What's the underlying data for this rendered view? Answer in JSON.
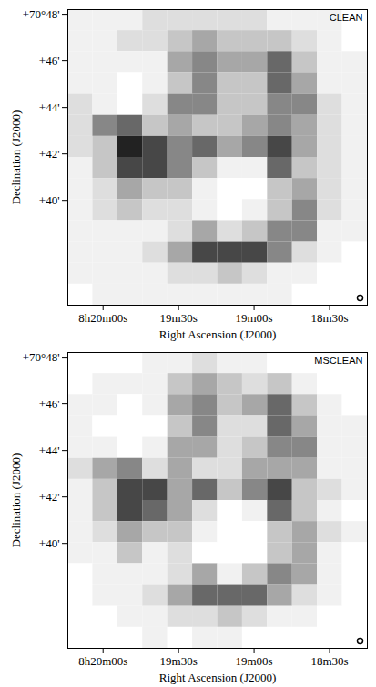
{
  "chart_data": [
    {
      "type": "image",
      "title": "CLEAN",
      "x_label": "Right Ascension (J2000)",
      "y_label": "Declination (J2000)",
      "xlim": [
        30014,
        29895
      ],
      "ylim": [
        35.5,
        48.2
      ],
      "xticks": [
        {
          "value": 30000,
          "label": "8h20m00s"
        },
        {
          "value": 29970,
          "label": "19m30s"
        },
        {
          "value": 29940,
          "label": "19m00s"
        },
        {
          "value": 29910,
          "label": "18m30s"
        }
      ],
      "yticks": [
        {
          "value": 48,
          "label": "+70°48'"
        },
        {
          "value": 46,
          "label": "+46'"
        },
        {
          "value": 44,
          "label": "+44'"
        },
        {
          "value": 42,
          "label": "+42'"
        },
        {
          "value": 40,
          "label": "+40'"
        }
      ],
      "zlim": [
        0,
        9
      ],
      "cells": [
        [
          1,
          1,
          1,
          2,
          2,
          2,
          2,
          2,
          1,
          1,
          1,
          0
        ],
        [
          1,
          1,
          2,
          2,
          3,
          4,
          3,
          3,
          3,
          2,
          1,
          0
        ],
        [
          1,
          1,
          1,
          1,
          4,
          5,
          4,
          4,
          6,
          3,
          1,
          1
        ],
        [
          1,
          1,
          0,
          1,
          3,
          5,
          3,
          3,
          6,
          4,
          1,
          1
        ],
        [
          2,
          1,
          0,
          2,
          5,
          5,
          3,
          3,
          5,
          5,
          2,
          1
        ],
        [
          2,
          5,
          6,
          3,
          4,
          3,
          3,
          4,
          5,
          4,
          2,
          1
        ],
        [
          2,
          3,
          8,
          7,
          5,
          6,
          4,
          5,
          7,
          4,
          2,
          1
        ],
        [
          1,
          3,
          7,
          7,
          5,
          3,
          1,
          1,
          6,
          3,
          2,
          1
        ],
        [
          1,
          2,
          4,
          3,
          3,
          1,
          0,
          0,
          3,
          4,
          2,
          1
        ],
        [
          1,
          2,
          3,
          2,
          2,
          1,
          0,
          1,
          3,
          5,
          2,
          1
        ],
        [
          1,
          1,
          1,
          1,
          2,
          4,
          2,
          3,
          5,
          5,
          1,
          1
        ],
        [
          1,
          1,
          1,
          2,
          4,
          7,
          7,
          7,
          5,
          2,
          1,
          0
        ],
        [
          1,
          1,
          1,
          1,
          2,
          2,
          3,
          2,
          1,
          1,
          0,
          0
        ],
        [
          0,
          1,
          1,
          1,
          1,
          1,
          1,
          1,
          1,
          0,
          0,
          0
        ]
      ]
    },
    {
      "type": "image",
      "title": "MSCLEAN",
      "x_label": "Right Ascension (J2000)",
      "y_label": "Declination (J2000)",
      "xlim": [
        30014,
        29895
      ],
      "ylim": [
        35.5,
        48.2
      ],
      "xticks": [
        {
          "value": 30000,
          "label": "8h20m00s"
        },
        {
          "value": 29970,
          "label": "19m30s"
        },
        {
          "value": 29940,
          "label": "19m00s"
        },
        {
          "value": 29910,
          "label": "18m30s"
        }
      ],
      "yticks": [
        {
          "value": 48,
          "label": "+70°48'"
        },
        {
          "value": 46,
          "label": "+46'"
        },
        {
          "value": 44,
          "label": "+44'"
        },
        {
          "value": 42,
          "label": "+42'"
        },
        {
          "value": 40,
          "label": "+40'"
        }
      ],
      "zlim": [
        0,
        9
      ],
      "cells": [
        [
          0,
          0,
          0,
          1,
          1,
          2,
          1,
          1,
          0,
          0,
          0,
          0
        ],
        [
          0,
          1,
          1,
          1,
          3,
          4,
          3,
          2,
          3,
          1,
          0,
          0
        ],
        [
          1,
          1,
          0,
          1,
          4,
          5,
          3,
          4,
          6,
          3,
          1,
          0
        ],
        [
          1,
          0,
          0,
          0,
          3,
          5,
          2,
          2,
          6,
          4,
          1,
          1
        ],
        [
          1,
          1,
          0,
          1,
          4,
          4,
          2,
          3,
          5,
          5,
          1,
          1
        ],
        [
          2,
          4,
          5,
          2,
          4,
          2,
          2,
          4,
          4,
          4,
          1,
          1
        ],
        [
          1,
          3,
          7,
          7,
          4,
          6,
          3,
          5,
          7,
          3,
          2,
          1
        ],
        [
          1,
          3,
          7,
          6,
          4,
          2,
          0,
          1,
          6,
          3,
          1,
          0
        ],
        [
          1,
          2,
          4,
          3,
          3,
          1,
          0,
          0,
          3,
          4,
          2,
          1
        ],
        [
          1,
          1,
          3,
          1,
          2,
          0,
          0,
          0,
          3,
          4,
          1,
          0
        ],
        [
          0,
          1,
          1,
          1,
          2,
          4,
          1,
          3,
          5,
          4,
          1,
          0
        ],
        [
          0,
          1,
          1,
          2,
          4,
          6,
          6,
          6,
          4,
          2,
          1,
          0
        ],
        [
          0,
          0,
          1,
          1,
          2,
          2,
          3,
          2,
          1,
          1,
          0,
          0
        ],
        [
          0,
          0,
          0,
          1,
          0,
          1,
          1,
          0,
          0,
          0,
          0,
          0
        ]
      ]
    }
  ]
}
